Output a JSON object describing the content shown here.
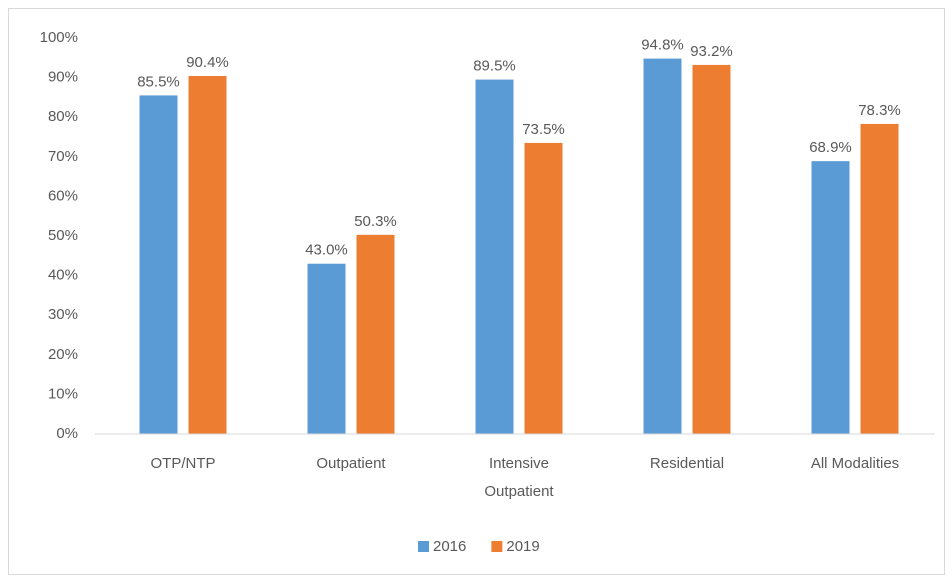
{
  "chart_data": {
    "type": "bar",
    "categories": [
      "OTP/NTP",
      "Outpatient",
      "Intensive Outpatient",
      "Residential",
      "All Modalities"
    ],
    "series": [
      {
        "name": "2016",
        "color": "#5b9bd5",
        "values": [
          85.5,
          43.0,
          89.5,
          94.8,
          68.9
        ],
        "value_labels": [
          "85.5%",
          "43.0%",
          "89.5%",
          "94.8%",
          "68.9%"
        ]
      },
      {
        "name": "2019",
        "color": "#ed7d31",
        "values": [
          90.4,
          50.3,
          73.5,
          93.2,
          78.3
        ],
        "value_labels": [
          "90.4%",
          "50.3%",
          "73.5%",
          "93.2%",
          "78.3%"
        ]
      }
    ],
    "ylim": [
      0,
      100
    ],
    "yticks": [
      {
        "value": 0,
        "label": "0%"
      },
      {
        "value": 10,
        "label": "10%"
      },
      {
        "value": 20,
        "label": "20%"
      },
      {
        "value": 30,
        "label": "30%"
      },
      {
        "value": 40,
        "label": "40%"
      },
      {
        "value": 50,
        "label": "50%"
      },
      {
        "value": 60,
        "label": "60%"
      },
      {
        "value": 70,
        "label": "70%"
      },
      {
        "value": 80,
        "label": "80%"
      },
      {
        "value": 90,
        "label": "90%"
      },
      {
        "value": 100,
        "label": "100%"
      }
    ],
    "grid": false,
    "legend": "bottom"
  }
}
